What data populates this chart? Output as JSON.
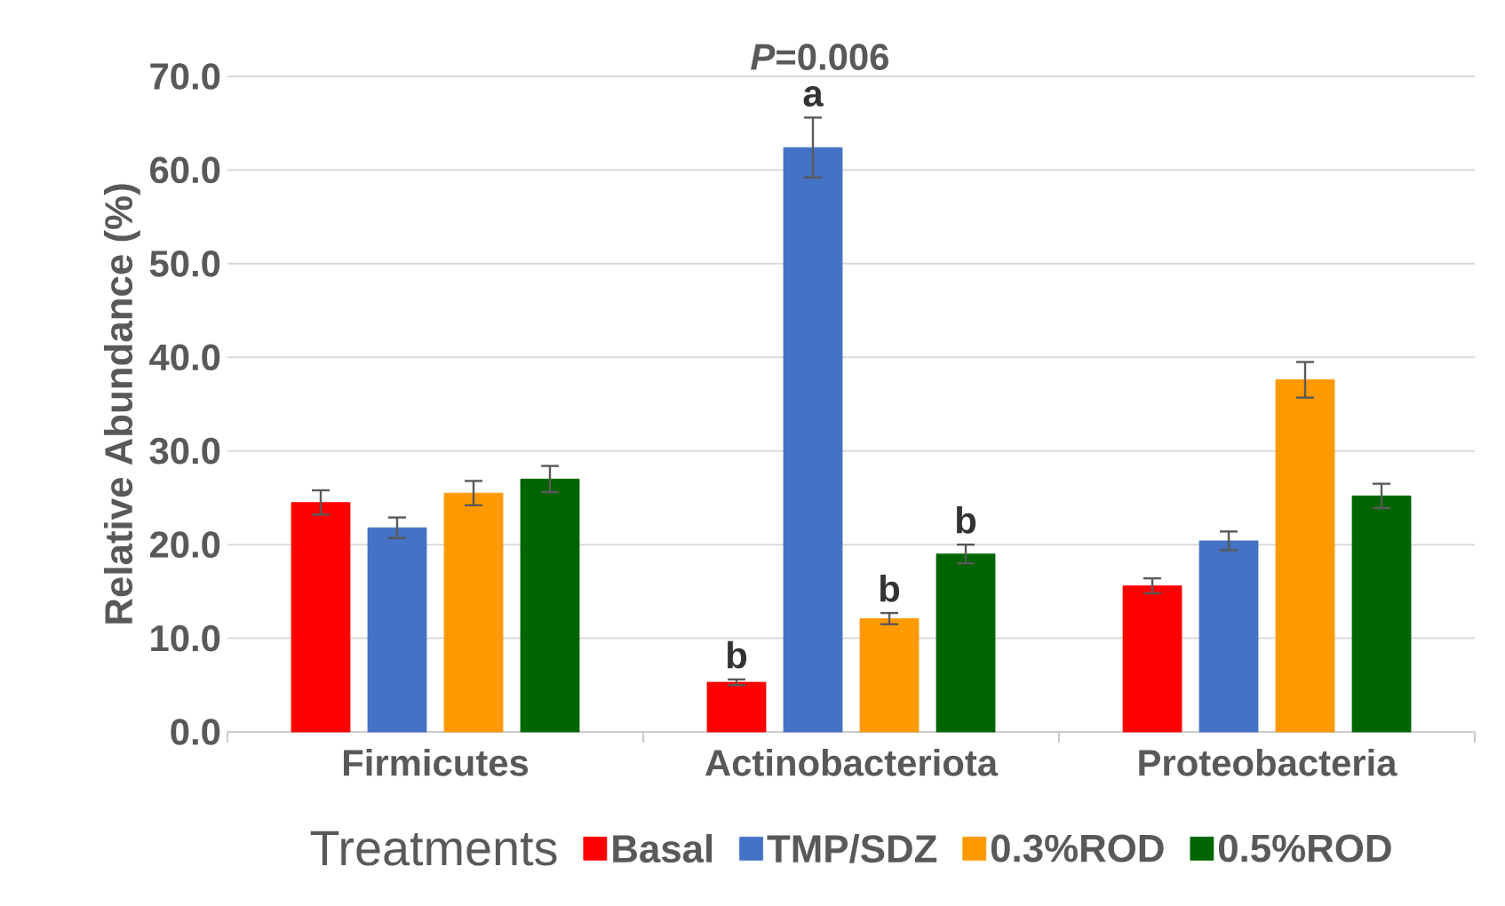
{
  "chart_data": {
    "type": "bar",
    "categories": [
      "Firmicutes",
      "Actinobacteriota",
      "Proteobacteria"
    ],
    "ylabel": "Relative Abundance (%)",
    "legend_title": "Treatments",
    "series": [
      {
        "name": "Basal",
        "color": "#ff0000",
        "values": [
          24.5,
          5.3,
          15.6
        ],
        "errors": [
          1.3,
          0.3,
          0.8
        ]
      },
      {
        "name": "TMP/SDZ",
        "color": "#4472c4",
        "values": [
          21.8,
          62.4,
          20.4
        ],
        "errors": [
          1.1,
          3.2,
          1.0
        ]
      },
      {
        "name": "0.3%ROD",
        "color": "#ff9900",
        "values": [
          25.5,
          12.1,
          37.6
        ],
        "errors": [
          1.3,
          0.6,
          1.9
        ]
      },
      {
        "name": "0.5%ROD",
        "color": "#006400",
        "values": [
          27.0,
          19.0,
          25.2
        ],
        "errors": [
          1.4,
          1.0,
          1.3
        ]
      }
    ],
    "ylim": [
      0,
      70
    ],
    "yticks": [
      {
        "value": 0,
        "label": "0.0"
      },
      {
        "value": 10,
        "label": "10.0"
      },
      {
        "value": 20,
        "label": "20.0"
      },
      {
        "value": 30,
        "label": "30.0"
      },
      {
        "value": 40,
        "label": "40.0"
      },
      {
        "value": 50,
        "label": "50.0"
      },
      {
        "value": 60,
        "label": "60.0"
      },
      {
        "value": 70,
        "label": "70.0"
      }
    ],
    "annotations": [
      "*P*=0.006",
      "b",
      "a",
      "b",
      "b"
    ],
    "grid": "y",
    "legend": "bottom"
  }
}
